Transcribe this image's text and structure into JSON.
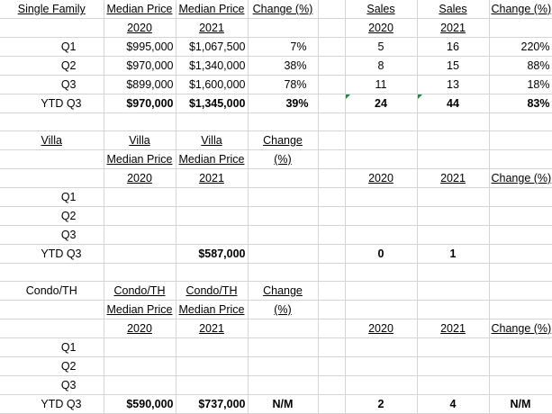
{
  "single_family": {
    "row1": [
      "Single Family",
      "Median Price",
      "Median Price",
      "Change (%)",
      "",
      "Sales",
      "Sales",
      "Change (%)"
    ],
    "row2": [
      "",
      "2020",
      "2021",
      "",
      "",
      "2020",
      "2021",
      ""
    ],
    "rows": [
      [
        "Q1",
        "$995,000",
        "$1,067,500",
        "7%",
        "",
        "5",
        "16",
        "220%"
      ],
      [
        "Q2",
        "$970,000",
        "$1,340,000",
        "38%",
        "",
        "8",
        "15",
        "88%"
      ],
      [
        "Q3",
        "$899,000",
        "$1,600,000",
        "78%",
        "",
        "11",
        "13",
        "18%"
      ],
      [
        "YTD Q3",
        "$970,000",
        "$1,345,000",
        "39%",
        "",
        "24",
        "44",
        "83%"
      ]
    ]
  },
  "villa": {
    "row1": [
      "Villa",
      "Villa",
      "Villa",
      "Change",
      "",
      "",
      "",
      ""
    ],
    "row2": [
      "",
      "Median Price",
      "Median Price",
      "(%)",
      "",
      "",
      "",
      ""
    ],
    "row3": [
      "",
      "2020",
      "2021",
      "",
      "",
      "2020",
      "2021",
      "Change (%)"
    ],
    "rows": [
      [
        "Q1",
        "",
        "",
        "",
        "",
        "",
        "",
        ""
      ],
      [
        "Q2",
        "",
        "",
        "",
        "",
        "",
        "",
        ""
      ],
      [
        "Q3",
        "",
        "",
        "",
        "",
        "",
        "",
        ""
      ],
      [
        "YTD Q3",
        "",
        "$587,000",
        "",
        "",
        "0",
        "1",
        ""
      ]
    ]
  },
  "condo": {
    "row1": [
      "Condo/TH",
      "Condo/TH",
      "Condo/TH",
      "Change",
      "",
      "",
      "",
      ""
    ],
    "row2": [
      "",
      "Median Price",
      "Median Price",
      "(%)",
      "",
      "",
      "",
      ""
    ],
    "row3": [
      "",
      "2020",
      "2021",
      "",
      "",
      "2020",
      "2021",
      "Change (%)"
    ],
    "rows": [
      [
        "Q1",
        "",
        "",
        "",
        "",
        "",
        "",
        ""
      ],
      [
        "Q2",
        "",
        "",
        "",
        "",
        "",
        "",
        ""
      ],
      [
        "Q3",
        "",
        "",
        "",
        "",
        "",
        "",
        ""
      ],
      [
        "YTD Q3",
        "$590,000",
        "$737,000",
        "N/M",
        "",
        "2",
        "4",
        "N/M"
      ]
    ]
  },
  "colors": {
    "gridline": "#d4d4d4",
    "comment_marker": "#1e8b3a"
  }
}
